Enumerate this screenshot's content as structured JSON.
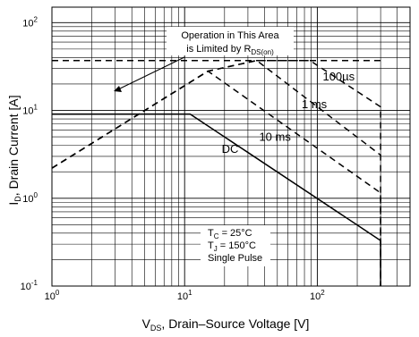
{
  "chart_data": {
    "type": "line",
    "x_scale": "log",
    "y_scale": "log",
    "xlim": [
      1,
      500
    ],
    "ylim": [
      0.1,
      150
    ],
    "grid": true,
    "x_major_ticks": [
      {
        "value": 1,
        "base": "10",
        "exp": "0"
      },
      {
        "value": 10,
        "base": "10",
        "exp": "1"
      },
      {
        "value": 100,
        "base": "10",
        "exp": "2"
      }
    ],
    "y_major_ticks": [
      {
        "value": 0.1,
        "base": "10",
        "exp": "-1"
      },
      {
        "value": 1,
        "base": "10",
        "exp": "0"
      },
      {
        "value": 10,
        "base": "10",
        "exp": "1"
      },
      {
        "value": 100,
        "base": "10",
        "exp": "2"
      }
    ],
    "xlabel": {
      "main": "V",
      "sub": "DS",
      "rest": ", Drain–Source Voltage [V]"
    },
    "ylabel": {
      "main": "I",
      "sub": "D",
      "rest": ", Drain Current [A]"
    },
    "series": [
      {
        "name": "DC",
        "style": "solid",
        "x": [
          1,
          11,
          300,
          300
        ],
        "y": [
          9.1,
          9.1,
          0.33,
          0.1
        ]
      },
      {
        "name": "10 ms",
        "style": "dashed",
        "x": [
          1,
          15,
          300,
          300
        ],
        "y": [
          2.2,
          28,
          1.15,
          0.1
        ]
      },
      {
        "name": "1 ms",
        "style": "dashed",
        "x": [
          1,
          15,
          35,
          300
        ],
        "y": [
          2.2,
          28,
          37,
          3.1
        ]
      },
      {
        "name": "100µs",
        "style": "dashed",
        "x": [
          1,
          15,
          35,
          88,
          300,
          300
        ],
        "y": [
          2.2,
          28,
          37,
          37,
          11,
          0.1
        ]
      }
    ],
    "limit_lines": [
      {
        "style": "dashed",
        "x": [
          1,
          300
        ],
        "y": [
          37,
          37
        ]
      }
    ],
    "curve_labels": [
      {
        "text": "100µs",
        "x": 145,
        "y": 22
      },
      {
        "text": "1 ms",
        "x": 95,
        "y": 10.6
      },
      {
        "text": "10 ms",
        "x": 48,
        "y": 4.5
      },
      {
        "text": "DC",
        "x": 22,
        "y": 3.3
      }
    ],
    "annotations": {
      "region_line1": "Operation in This Area",
      "region_line2_prefix": "is Limited by R",
      "region_line2_sub": "DS(on)",
      "tc": {
        "main": "T",
        "sub": "C",
        "rest": " = 25°C"
      },
      "tj": {
        "main": "T",
        "sub": "J",
        "rest": " = 150°C"
      },
      "pulse": "Single Pulse"
    }
  }
}
